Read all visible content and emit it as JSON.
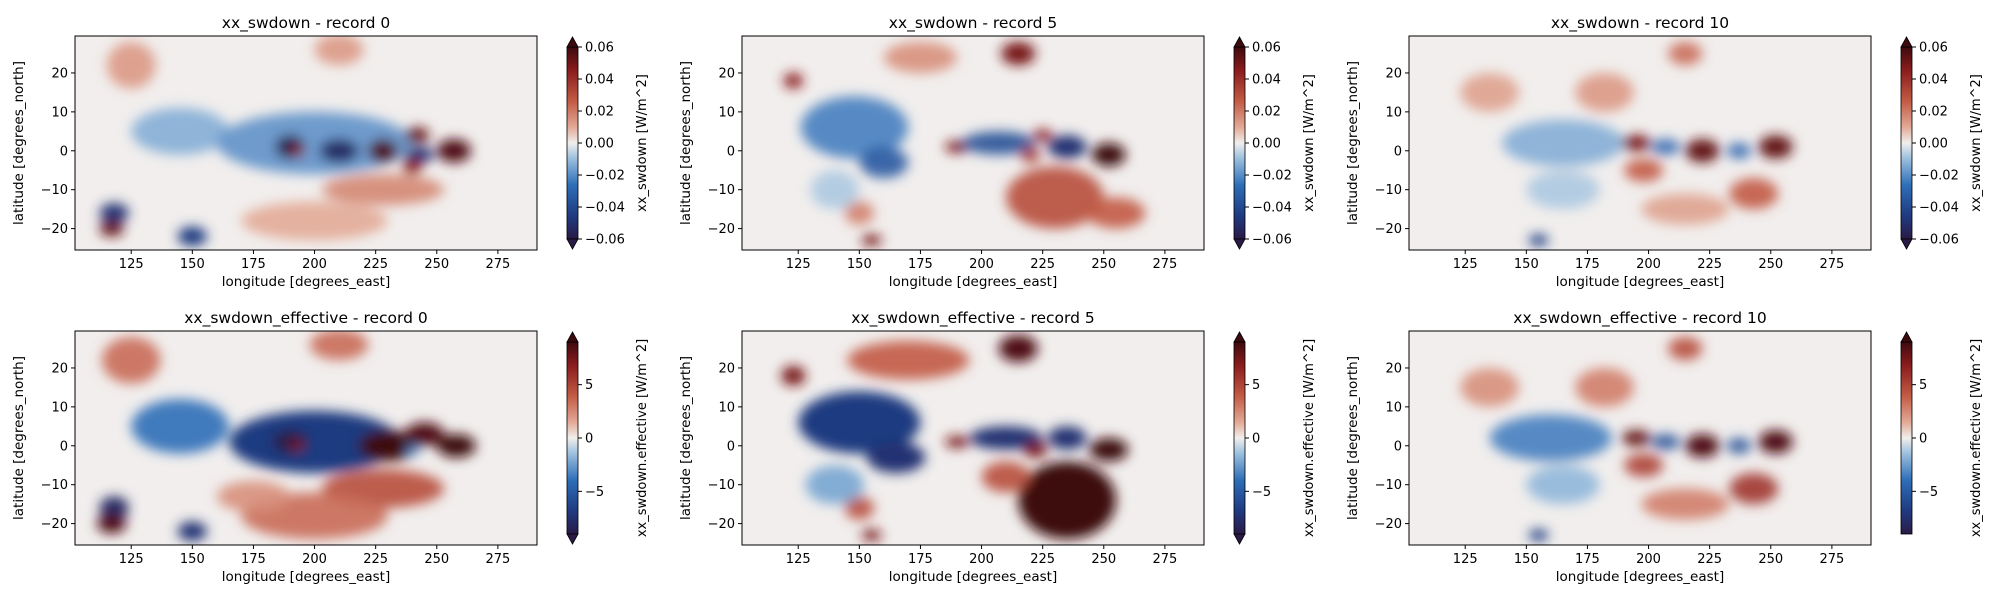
{
  "figure": {
    "background": "#ffffff"
  },
  "chart_data": [
    {
      "type": "heatmap",
      "title": "xx_swdown - record 0",
      "xlabel": "longitude [degrees_east]",
      "ylabel": "latitude [degrees_north]",
      "xlim": [
        102,
        291
      ],
      "ylim": [
        -25.5,
        29.5
      ],
      "xticks": [
        125,
        150,
        175,
        200,
        225,
        250,
        275
      ],
      "yticks": [
        -20,
        -10,
        0,
        10,
        20
      ],
      "colorbar": {
        "label": "xx_swdown [W/m^2]",
        "vmin": -0.06,
        "vmax": 0.06,
        "ticks": [
          -0.06,
          -0.04,
          -0.02,
          0.0,
          0.02,
          0.04,
          0.06
        ],
        "tick_labels": [
          "−0.06",
          "−0.04",
          "−0.02",
          "0.00",
          "0.02",
          "0.04",
          "0.06"
        ],
        "extend": "both"
      },
      "colormap": "balance",
      "features": [
        {
          "lon": 118,
          "lat": -16,
          "value": -1.3,
          "rx": 6,
          "ry": 2.5
        },
        {
          "lon": 117,
          "lat": -20,
          "value": 1.4,
          "rx": 5,
          "ry": 2
        },
        {
          "lon": 150,
          "lat": -22,
          "value": -1.2,
          "rx": 6,
          "ry": 2.5
        },
        {
          "lon": 125,
          "lat": 22,
          "value": 0.35,
          "rx": 10,
          "ry": 6
        },
        {
          "lon": 210,
          "lat": 26,
          "value": 0.35,
          "rx": 10,
          "ry": 4
        },
        {
          "lon": 145,
          "lat": 5,
          "value": -0.35,
          "rx": 20,
          "ry": 6
        },
        {
          "lon": 200,
          "lat": 2,
          "value": -0.5,
          "rx": 40,
          "ry": 8
        },
        {
          "lon": 190,
          "lat": 1,
          "value": -1.6,
          "rx": 6,
          "ry": 3
        },
        {
          "lon": 193,
          "lat": 0,
          "value": 1.2,
          "rx": 3,
          "ry": 1.5
        },
        {
          "lon": 210,
          "lat": 0,
          "value": -1.4,
          "rx": 8,
          "ry": 3
        },
        {
          "lon": 228,
          "lat": 0,
          "value": 1.5,
          "rx": 6,
          "ry": 3
        },
        {
          "lon": 242,
          "lat": 4,
          "value": 1.4,
          "rx": 5,
          "ry": 2
        },
        {
          "lon": 243,
          "lat": -1,
          "value": -1.3,
          "rx": 6,
          "ry": 2
        },
        {
          "lon": 240,
          "lat": -4,
          "value": 1.2,
          "rx": 4,
          "ry": 2
        },
        {
          "lon": 257,
          "lat": 0,
          "value": 1.5,
          "rx": 7,
          "ry": 3
        },
        {
          "lon": 228,
          "lat": -10,
          "value": 0.45,
          "rx": 25,
          "ry": 4
        },
        {
          "lon": 200,
          "lat": -18,
          "value": 0.25,
          "rx": 30,
          "ry": 5
        }
      ]
    },
    {
      "type": "heatmap",
      "title": "xx_swdown - record 5",
      "xlabel": "longitude [degrees_east]",
      "ylabel": "latitude [degrees_north]",
      "xlim": [
        102,
        291
      ],
      "ylim": [
        -25.5,
        29.5
      ],
      "xticks": [
        125,
        150,
        175,
        200,
        225,
        250,
        275
      ],
      "yticks": [
        -20,
        -10,
        0,
        10,
        20
      ],
      "colorbar": {
        "label": "xx_swdown [W/m^2]",
        "vmin": -0.06,
        "vmax": 0.06,
        "ticks": [
          -0.06,
          -0.04,
          -0.02,
          0.0,
          0.02,
          0.04,
          0.06
        ],
        "tick_labels": [
          "−0.06",
          "−0.04",
          "−0.02",
          "0.00",
          "0.02",
          "0.04",
          "0.06"
        ],
        "extend": "both"
      },
      "colormap": "balance",
      "features": [
        {
          "lon": 123,
          "lat": 18,
          "value": 1.2,
          "rx": 4,
          "ry": 2
        },
        {
          "lon": 215,
          "lat": 25,
          "value": 1.3,
          "rx": 7,
          "ry": 3
        },
        {
          "lon": 175,
          "lat": 24,
          "value": 0.4,
          "rx": 15,
          "ry": 4
        },
        {
          "lon": 148,
          "lat": 6,
          "value": -0.6,
          "rx": 22,
          "ry": 8
        },
        {
          "lon": 160,
          "lat": -3,
          "value": -0.9,
          "rx": 10,
          "ry": 4
        },
        {
          "lon": 190,
          "lat": 1,
          "value": 1.3,
          "rx": 5,
          "ry": 1.5
        },
        {
          "lon": 207,
          "lat": 2,
          "value": -1.0,
          "rx": 15,
          "ry": 3
        },
        {
          "lon": 225,
          "lat": 4,
          "value": 1.2,
          "rx": 4,
          "ry": 1.5
        },
        {
          "lon": 235,
          "lat": 1,
          "value": -1.3,
          "rx": 8,
          "ry": 3
        },
        {
          "lon": 252,
          "lat": -1,
          "value": 1.6,
          "rx": 7,
          "ry": 3
        },
        {
          "lon": 220,
          "lat": -1,
          "value": 1.0,
          "rx": 4,
          "ry": 2
        },
        {
          "lon": 230,
          "lat": -12,
          "value": 0.8,
          "rx": 20,
          "ry": 8
        },
        {
          "lon": 255,
          "lat": -16,
          "value": 0.7,
          "rx": 12,
          "ry": 4
        },
        {
          "lon": 155,
          "lat": -23,
          "value": 1.3,
          "rx": 4,
          "ry": 1.5
        },
        {
          "lon": 150,
          "lat": -16,
          "value": 0.5,
          "rx": 6,
          "ry": 3
        },
        {
          "lon": 140,
          "lat": -10,
          "value": -0.2,
          "rx": 10,
          "ry": 5
        }
      ]
    },
    {
      "type": "heatmap",
      "title": "xx_swdown - record 10",
      "xlabel": "longitude [degrees_east]",
      "ylabel": "latitude [degrees_north]",
      "xlim": [
        102,
        291
      ],
      "ylim": [
        -25.5,
        29.5
      ],
      "xticks": [
        125,
        150,
        175,
        200,
        225,
        250,
        275
      ],
      "yticks": [
        -20,
        -10,
        0,
        10,
        20
      ],
      "colorbar": {
        "label": "xx_swdown [W/m^2]",
        "vmin": -0.06,
        "vmax": 0.06,
        "ticks": [
          -0.06,
          -0.04,
          -0.02,
          0.0,
          0.02,
          0.04,
          0.06
        ],
        "tick_labels": [
          "−0.06",
          "−0.04",
          "−0.02",
          "0.00",
          "0.02",
          "0.04",
          "0.06"
        ],
        "extend": "both"
      },
      "colormap": "balance",
      "features": [
        {
          "lon": 135,
          "lat": 15,
          "value": 0.3,
          "rx": 12,
          "ry": 5
        },
        {
          "lon": 182,
          "lat": 15,
          "value": 0.35,
          "rx": 12,
          "ry": 5
        },
        {
          "lon": 215,
          "lat": 25,
          "value": 0.6,
          "rx": 7,
          "ry": 3
        },
        {
          "lon": 165,
          "lat": 2,
          "value": -0.35,
          "rx": 25,
          "ry": 6
        },
        {
          "lon": 195,
          "lat": 2,
          "value": 1.3,
          "rx": 6,
          "ry": 2
        },
        {
          "lon": 207,
          "lat": 1,
          "value": -0.8,
          "rx": 6,
          "ry": 2
        },
        {
          "lon": 222,
          "lat": 0,
          "value": 1.4,
          "rx": 7,
          "ry": 3
        },
        {
          "lon": 237,
          "lat": 0,
          "value": -0.8,
          "rx": 5,
          "ry": 2
        },
        {
          "lon": 252,
          "lat": 1,
          "value": 1.4,
          "rx": 7,
          "ry": 3
        },
        {
          "lon": 198,
          "lat": -5,
          "value": 0.7,
          "rx": 8,
          "ry": 3
        },
        {
          "lon": 243,
          "lat": -11,
          "value": 0.7,
          "rx": 10,
          "ry": 4
        },
        {
          "lon": 215,
          "lat": -15,
          "value": 0.3,
          "rx": 18,
          "ry": 4
        },
        {
          "lon": 155,
          "lat": -23,
          "value": -1.2,
          "rx": 4,
          "ry": 1.5
        },
        {
          "lon": 165,
          "lat": -10,
          "value": -0.2,
          "rx": 15,
          "ry": 5
        }
      ]
    },
    {
      "type": "heatmap",
      "title": "xx_swdown_effective - record 0",
      "xlabel": "longitude [degrees_east]",
      "ylabel": "latitude [degrees_north]",
      "xlim": [
        102,
        291
      ],
      "ylim": [
        -25.5,
        29.5
      ],
      "xticks": [
        125,
        150,
        175,
        200,
        225,
        250,
        275
      ],
      "yticks": [
        -20,
        -10,
        0,
        10,
        20
      ],
      "colorbar": {
        "label": "xx_swdown.effective [W/m^2]",
        "vmin": -9,
        "vmax": 9,
        "ticks": [
          -5,
          0,
          5
        ],
        "tick_labels": [
          "−5",
          "0",
          "5"
        ],
        "extend": "both"
      },
      "colormap": "balance",
      "features": [
        {
          "lon": 118,
          "lat": -16,
          "value": -1.4,
          "rx": 6,
          "ry": 3
        },
        {
          "lon": 117,
          "lat": -20,
          "value": 1.5,
          "rx": 6,
          "ry": 2.5
        },
        {
          "lon": 150,
          "lat": -22,
          "value": -1.3,
          "rx": 6,
          "ry": 2.5
        },
        {
          "lon": 125,
          "lat": 22,
          "value": 0.6,
          "rx": 12,
          "ry": 6
        },
        {
          "lon": 210,
          "lat": 26,
          "value": 0.6,
          "rx": 12,
          "ry": 4
        },
        {
          "lon": 145,
          "lat": 5,
          "value": -0.7,
          "rx": 20,
          "ry": 7
        },
        {
          "lon": 200,
          "lat": 1,
          "value": -1.2,
          "rx": 35,
          "ry": 8
        },
        {
          "lon": 190,
          "lat": 1,
          "value": -1.6,
          "rx": 7,
          "ry": 3
        },
        {
          "lon": 193,
          "lat": 0,
          "value": 1.3,
          "rx": 3,
          "ry": 1.5
        },
        {
          "lon": 230,
          "lat": 0,
          "value": 1.6,
          "rx": 12,
          "ry": 4
        },
        {
          "lon": 245,
          "lat": 3,
          "value": 1.5,
          "rx": 8,
          "ry": 3
        },
        {
          "lon": 240,
          "lat": -1,
          "value": -0.6,
          "rx": 3,
          "ry": 1.5
        },
        {
          "lon": 258,
          "lat": 0,
          "value": 1.6,
          "rx": 8,
          "ry": 3
        },
        {
          "lon": 228,
          "lat": -11,
          "value": 0.8,
          "rx": 25,
          "ry": 5
        },
        {
          "lon": 200,
          "lat": -18,
          "value": 0.6,
          "rx": 30,
          "ry": 6
        },
        {
          "lon": 175,
          "lat": -13,
          "value": 0.4,
          "rx": 15,
          "ry": 4
        }
      ]
    },
    {
      "type": "heatmap",
      "title": "xx_swdown_effective - record 5",
      "xlabel": "longitude [degrees_east]",
      "ylabel": "latitude [degrees_north]",
      "xlim": [
        102,
        291
      ],
      "ylim": [
        -25.5,
        29.5
      ],
      "xticks": [
        125,
        150,
        175,
        200,
        225,
        250,
        275
      ],
      "yticks": [
        -20,
        -10,
        0,
        10,
        20
      ],
      "colorbar": {
        "label": "xx_swdown.effective [W/m^2]",
        "vmin": -9,
        "vmax": 9,
        "ticks": [
          -5,
          0,
          5
        ],
        "tick_labels": [
          "−5",
          "0",
          "5"
        ],
        "extend": "both"
      },
      "colormap": "balance",
      "features": [
        {
          "lon": 123,
          "lat": 18,
          "value": 1.3,
          "rx": 5,
          "ry": 2.5
        },
        {
          "lon": 215,
          "lat": 25,
          "value": 1.5,
          "rx": 8,
          "ry": 3.5
        },
        {
          "lon": 170,
          "lat": 22,
          "value": 0.7,
          "rx": 25,
          "ry": 5
        },
        {
          "lon": 150,
          "lat": 6,
          "value": -1.2,
          "rx": 25,
          "ry": 8
        },
        {
          "lon": 165,
          "lat": -3,
          "value": -1.3,
          "rx": 12,
          "ry": 4
        },
        {
          "lon": 190,
          "lat": 1,
          "value": 1.3,
          "rx": 5,
          "ry": 1.5
        },
        {
          "lon": 210,
          "lat": 2,
          "value": -1.3,
          "rx": 15,
          "ry": 3
        },
        {
          "lon": 222,
          "lat": -1,
          "value": 1.3,
          "rx": 5,
          "ry": 2
        },
        {
          "lon": 235,
          "lat": 2,
          "value": -1.3,
          "rx": 8,
          "ry": 3
        },
        {
          "lon": 252,
          "lat": -1,
          "value": 1.7,
          "rx": 8,
          "ry": 3
        },
        {
          "lon": 235,
          "lat": -14,
          "value": 1.7,
          "rx": 20,
          "ry": 10
        },
        {
          "lon": 210,
          "lat": -8,
          "value": 0.8,
          "rx": 10,
          "ry": 4
        },
        {
          "lon": 155,
          "lat": -23,
          "value": 1.3,
          "rx": 4,
          "ry": 1.5
        },
        {
          "lon": 150,
          "lat": -16,
          "value": 0.8,
          "rx": 6,
          "ry": 3
        },
        {
          "lon": 140,
          "lat": -10,
          "value": -0.4,
          "rx": 12,
          "ry": 5
        }
      ]
    },
    {
      "type": "heatmap",
      "title": "xx_swdown_effective - record 10",
      "xlabel": "longitude [degrees_east]",
      "ylabel": "latitude [degrees_north]",
      "xlim": [
        102,
        291
      ],
      "ylim": [
        -25.5,
        29.5
      ],
      "xticks": [
        125,
        150,
        175,
        200,
        225,
        250,
        275
      ],
      "yticks": [
        -20,
        -10,
        0,
        10,
        20
      ],
      "colorbar": {
        "label": "xx_swdown.effective [W/m^2]",
        "vmin": -9,
        "vmax": 9,
        "ticks": [
          -5,
          0,
          5
        ],
        "tick_labels": [
          "−5",
          "0",
          "5"
        ],
        "extend": "max"
      },
      "colormap": "balance",
      "features": [
        {
          "lon": 135,
          "lat": 15,
          "value": 0.4,
          "rx": 12,
          "ry": 5
        },
        {
          "lon": 182,
          "lat": 15,
          "value": 0.5,
          "rx": 12,
          "ry": 5
        },
        {
          "lon": 215,
          "lat": 25,
          "value": 0.8,
          "rx": 7,
          "ry": 3
        },
        {
          "lon": 160,
          "lat": 2,
          "value": -0.6,
          "rx": 25,
          "ry": 6
        },
        {
          "lon": 195,
          "lat": 2,
          "value": 1.4,
          "rx": 6,
          "ry": 2
        },
        {
          "lon": 207,
          "lat": 1,
          "value": -1.0,
          "rx": 6,
          "ry": 2
        },
        {
          "lon": 222,
          "lat": 0,
          "value": 1.5,
          "rx": 7,
          "ry": 3
        },
        {
          "lon": 237,
          "lat": 0,
          "value": -1.0,
          "rx": 5,
          "ry": 2
        },
        {
          "lon": 252,
          "lat": 1,
          "value": 1.5,
          "rx": 7,
          "ry": 3
        },
        {
          "lon": 198,
          "lat": -5,
          "value": 0.9,
          "rx": 8,
          "ry": 3
        },
        {
          "lon": 243,
          "lat": -11,
          "value": 1.0,
          "rx": 10,
          "ry": 4
        },
        {
          "lon": 215,
          "lat": -15,
          "value": 0.5,
          "rx": 18,
          "ry": 4
        },
        {
          "lon": 155,
          "lat": -23,
          "value": -1.2,
          "rx": 4,
          "ry": 1.5
        },
        {
          "lon": 165,
          "lat": -10,
          "value": -0.3,
          "rx": 15,
          "ry": 5
        }
      ]
    }
  ]
}
